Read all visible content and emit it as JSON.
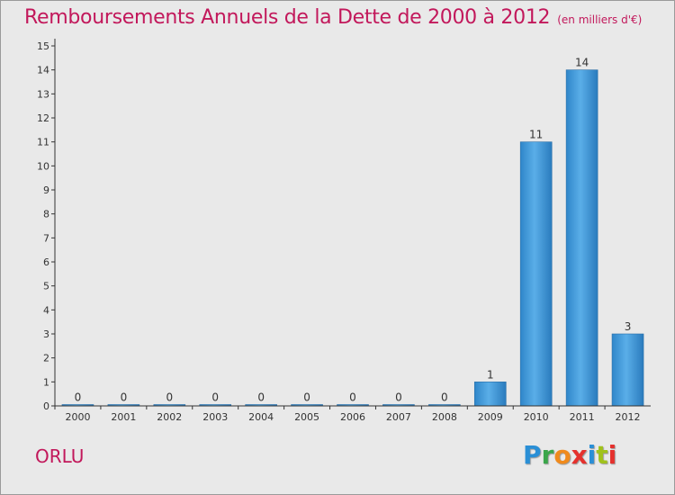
{
  "chart_data": {
    "type": "bar",
    "title": "Remboursements Annuels de la Dette de 2000 à 2012",
    "subtitle": "(en milliers d'€)",
    "categories": [
      "2000",
      "2001",
      "2002",
      "2003",
      "2004",
      "2005",
      "2006",
      "2007",
      "2008",
      "2009",
      "2010",
      "2011",
      "2012"
    ],
    "values": [
      0,
      0,
      0,
      0,
      0,
      0,
      0,
      0,
      0,
      1,
      11,
      14,
      3
    ],
    "value_labels": [
      "0",
      "0",
      "0",
      "0",
      "0",
      "0",
      "0",
      "0",
      "0",
      "1",
      "11",
      "14",
      "3"
    ],
    "ylim": [
      0,
      15
    ],
    "y_ticks": [
      "0",
      "1",
      "2",
      "3",
      "4",
      "5",
      "6",
      "7",
      "8",
      "9",
      "10",
      "11",
      "12",
      "13",
      "14",
      "15"
    ],
    "xlabel": "",
    "ylabel": "",
    "grid": false,
    "bar_color": "#3f97d8"
  },
  "footer": {
    "city": "ORLU",
    "brand": "Proxiti"
  },
  "colors": {
    "title": "#c2185b",
    "background": "#e9e9e9"
  }
}
